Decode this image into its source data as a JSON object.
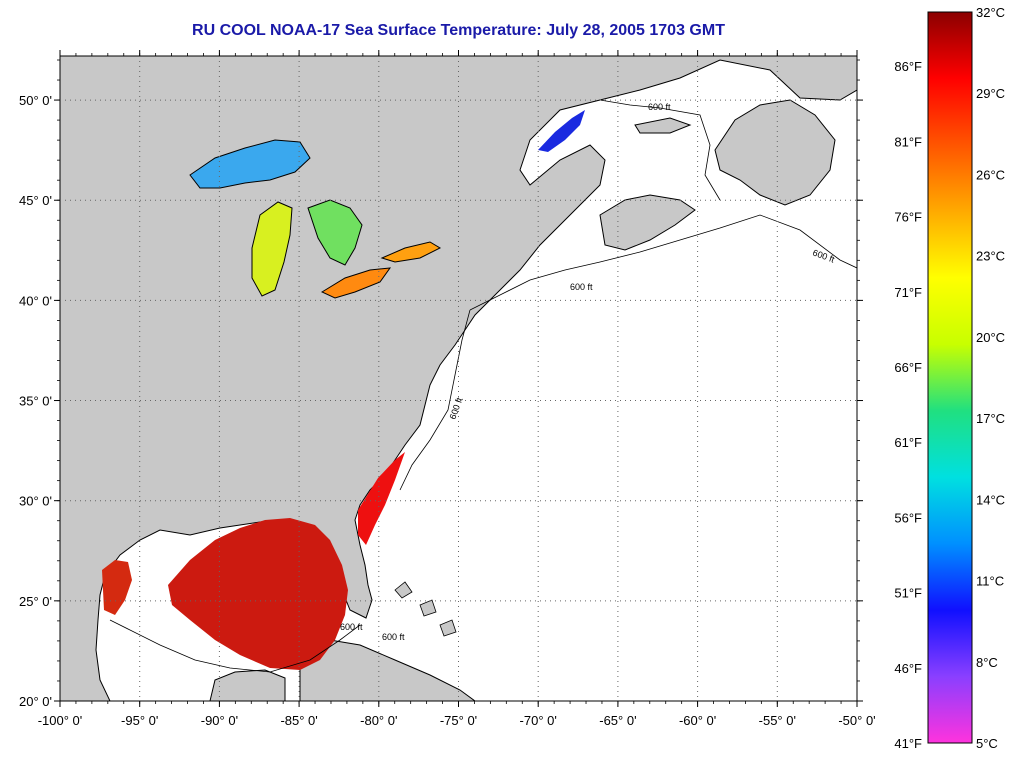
{
  "title": "RU COOL  NOAA-17  Sea Surface Temperature:  July 28, 2005 1703 GMT",
  "map": {
    "lon_range": [
      -100,
      -50
    ],
    "lat_range": [
      20,
      52.2
    ],
    "lat_ticks": [
      {
        "value": 20,
        "label": "20° 0'"
      },
      {
        "value": 25,
        "label": "25° 0'"
      },
      {
        "value": 30,
        "label": "30° 0'"
      },
      {
        "value": 35,
        "label": "35° 0'"
      },
      {
        "value": 40,
        "label": "40° 0'"
      },
      {
        "value": 45,
        "label": "45° 0'"
      },
      {
        "value": 50,
        "label": "50° 0'"
      }
    ],
    "lon_ticks": [
      {
        "value": -100,
        "label": "-100° 0'"
      },
      {
        "value": -95,
        "label": "-95° 0'"
      },
      {
        "value": -90,
        "label": "-90° 0'"
      },
      {
        "value": -85,
        "label": "-85° 0'"
      },
      {
        "value": -80,
        "label": "-80° 0'"
      },
      {
        "value": -75,
        "label": "-75° 0'"
      },
      {
        "value": -70,
        "label": "-70° 0'"
      },
      {
        "value": -65,
        "label": "-65° 0'"
      },
      {
        "value": -60,
        "label": "-60° 0'"
      },
      {
        "value": -55,
        "label": "-55° 0'"
      },
      {
        "value": -50,
        "label": "-50° 0'"
      }
    ],
    "contour_label": "600 ft",
    "land_color": "#c8c8c8",
    "ocean_color": "#ffffff"
  },
  "colorbar": {
    "celsius_labels": [
      "32°C",
      "29°C",
      "26°C",
      "23°C",
      "20°C",
      "17°C",
      "14°C",
      "11°C",
      "8°C",
      "5°C"
    ],
    "fahrenheit_labels": [
      "86°F",
      "81°F",
      "76°F",
      "71°F",
      "66°F",
      "61°F",
      "56°F",
      "51°F",
      "46°F",
      "41°F"
    ],
    "celsius_range": [
      5,
      32
    ],
    "gradient_colors": [
      "#ff33dd",
      "#8a3fff",
      "#1010ff",
      "#0090ff",
      "#00e0e0",
      "#20e080",
      "#c8ff00",
      "#ffff00",
      "#ffaa00",
      "#ff5500",
      "#ff0000",
      "#8b0000"
    ]
  }
}
